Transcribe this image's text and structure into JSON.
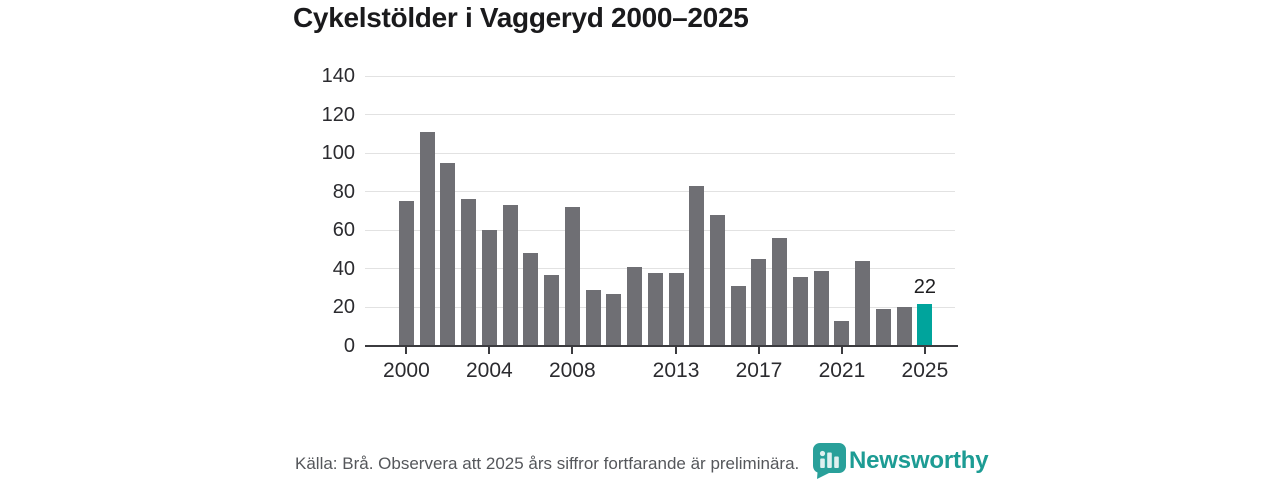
{
  "title": "Cykelstölder i Vaggeryd 2000–2025",
  "chart_data": {
    "type": "bar",
    "title": "Cykelstölder i Vaggeryd 2000–2025",
    "x": [
      2000,
      2001,
      2002,
      2003,
      2004,
      2005,
      2006,
      2007,
      2008,
      2009,
      2010,
      2011,
      2012,
      2013,
      2014,
      2015,
      2016,
      2017,
      2018,
      2019,
      2020,
      2021,
      2022,
      2023,
      2024,
      2025
    ],
    "values": [
      75,
      111,
      95,
      76,
      60,
      73,
      48,
      37,
      72,
      29,
      27,
      41,
      38,
      38,
      83,
      68,
      31,
      45,
      56,
      36,
      39,
      13,
      44,
      19,
      20,
      22
    ],
    "highlight_year": 2025,
    "highlight_value": 22,
    "value_label": "22",
    "xlabel": "",
    "ylabel": "",
    "ylim": [
      0,
      140
    ],
    "yticks": [
      0,
      20,
      40,
      60,
      80,
      100,
      120,
      140
    ],
    "xticks": [
      2000,
      2004,
      2008,
      2013,
      2017,
      2021,
      2025
    ],
    "grid": "horizontal",
    "legend": "none",
    "colors": {
      "bar": "#6f6f74",
      "highlight": "#00a49c",
      "gridline": "#e2e2e2",
      "axis": "#3b3b3f",
      "tick_text": "#2b2b2f",
      "value_text": "#1e1e20"
    }
  },
  "footer": {
    "source_note": "Källa: Brå. Observera att 2025 års siffror fortfarande är preliminära."
  },
  "logo": {
    "name": "Newsworthy",
    "wordmark": "Newsworthy",
    "icon": "newsworthy-barchart-bubble-icon",
    "icon_color": "#29a09a",
    "text_color": "#1d9c94"
  }
}
